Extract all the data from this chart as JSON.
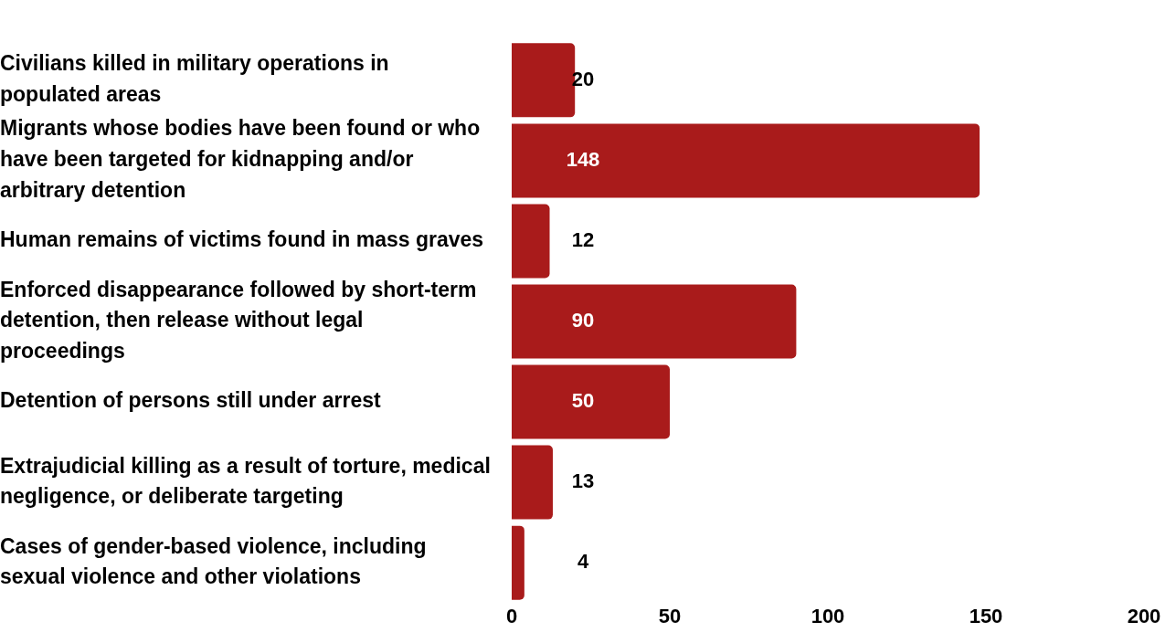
{
  "chart_data": {
    "type": "bar",
    "orientation": "horizontal",
    "categories": [
      "Civilians killed in military operations in populated areas",
      "Migrants whose bodies have been found or who have been targeted for kidnapping and/or arbitrary detention",
      "Human remains of victims found in mass graves",
      "Enforced disappearance followed by short-term detention, then release without legal proceedings",
      "Detention of persons still under arrest",
      "Extrajudicial killing as a result of torture, medical negligence, or deliberate targeting",
      "Cases of gender-based violence, including sexual violence and other violations"
    ],
    "values": [
      20,
      148,
      12,
      90,
      50,
      13,
      4
    ],
    "color": "#a91b1b",
    "xlim": [
      0,
      200
    ],
    "xticks": [
      0,
      50,
      100,
      150,
      200
    ],
    "data_labels": true,
    "grid": false,
    "legend": false
  }
}
